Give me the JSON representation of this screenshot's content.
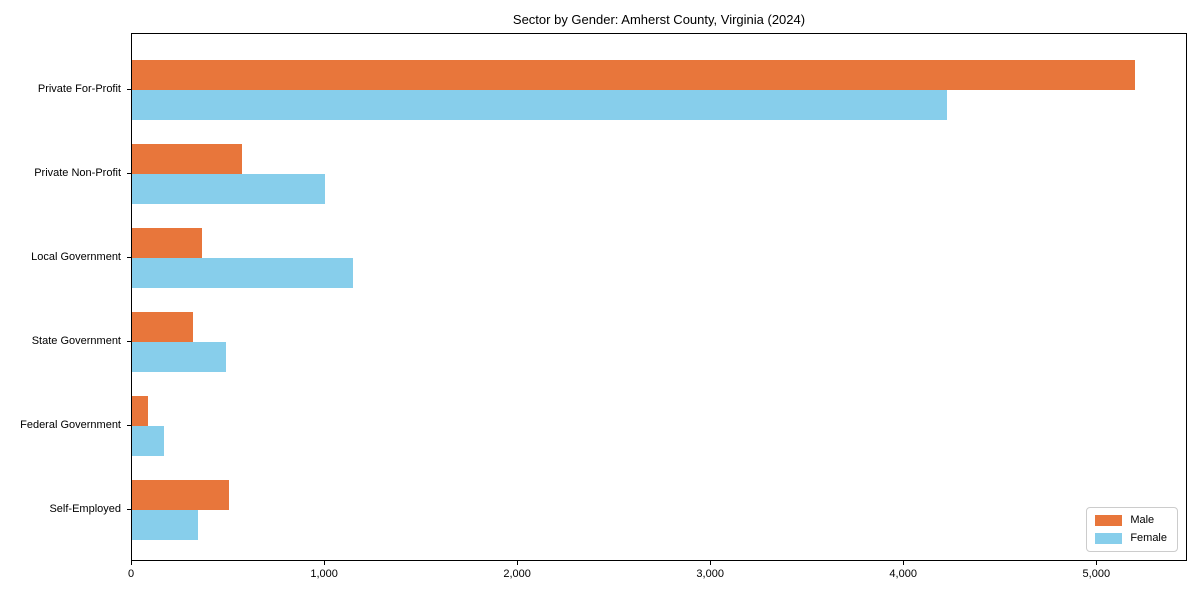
{
  "chart_data": {
    "type": "bar",
    "orientation": "horizontal",
    "title": "Sector by Gender: Amherst County, Virginia (2024)",
    "categories": [
      "Private For-Profit",
      "Private Non-Profit",
      "Local Government",
      "State Government",
      "Federal Government",
      "Self-Employed"
    ],
    "series": [
      {
        "name": "Male",
        "color": "#E8763B",
        "values": [
          5205,
          570,
          365,
          315,
          85,
          505
        ]
      },
      {
        "name": "Female",
        "color": "#87CEEB",
        "values": [
          4230,
          1000,
          1145,
          490,
          165,
          340
        ]
      }
    ],
    "xlabel": "",
    "ylabel": "",
    "xlim": [
      0,
      5470
    ],
    "x_ticks": [
      0,
      1000,
      2000,
      3000,
      4000,
      5000
    ],
    "x_tick_labels": [
      "0",
      "1,000",
      "2,000",
      "3,000",
      "4,000",
      "5,000"
    ],
    "grid": false,
    "legend_position": "lower right",
    "frame_color": "#000000",
    "background_color": "#ffffff"
  }
}
